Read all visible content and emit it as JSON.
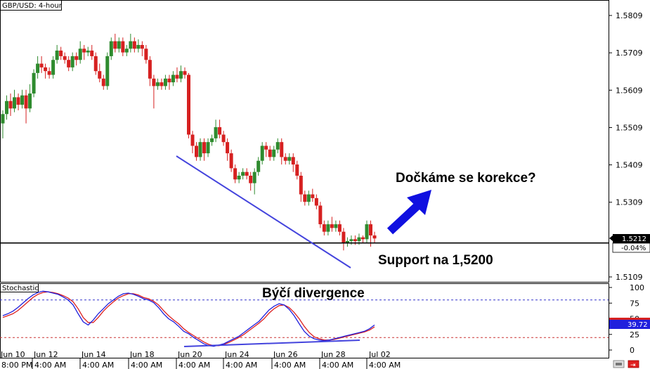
{
  "chart_data": {
    "type": "candlestick",
    "title": "GBP/USD: 4-hour",
    "colors": {
      "up": "#2e8b2e",
      "down": "#d62020",
      "support": "#000000",
      "trendline": "#4444dd",
      "arrow": "#1010e0",
      "stoch_k": "#2020dd",
      "stoch_d": "#dd2020"
    },
    "price_axis": {
      "ticks": [
        "1.5809",
        "1.5709",
        "1.5609",
        "1.5509",
        "1.5409",
        "1.5309",
        "1.5109"
      ],
      "ylim": [
        1.5062,
        1.5855
      ],
      "last_price": "1.5212",
      "last_change": "-0.04%"
    },
    "x_labels": [
      {
        "day": "Jun 10",
        "time": "8:00 PM"
      },
      {
        "day": "Jun 12",
        "time": "4:00 AM"
      },
      {
        "day": "Jun 14",
        "time": "4:00 AM"
      },
      {
        "day": "Jun 18",
        "time": "4:00 AM"
      },
      {
        "day": "Jun 20",
        "time": "4:00 AM"
      },
      {
        "day": "Jun 24",
        "time": "4:00 AM"
      },
      {
        "day": "Jun 26",
        "time": "4:00 AM"
      },
      {
        "day": "Jun 28",
        "time": "4:00 AM"
      },
      {
        "day": "Jul 02",
        "time": "4:00 AM"
      }
    ],
    "candles": [
      [
        1.552,
        1.5545,
        1.548,
        1.5555
      ],
      [
        1.5545,
        1.558,
        1.553,
        1.5595
      ],
      [
        1.558,
        1.556,
        1.554,
        1.56
      ],
      [
        1.556,
        1.559,
        1.555,
        1.561
      ],
      [
        1.559,
        1.557,
        1.5555,
        1.56
      ],
      [
        1.557,
        1.5595,
        1.556,
        1.561
      ],
      [
        1.5595,
        1.556,
        1.552,
        1.561
      ],
      [
        1.556,
        1.56,
        1.555,
        1.5625
      ],
      [
        1.56,
        1.5655,
        1.559,
        1.5665
      ],
      [
        1.5655,
        1.568,
        1.564,
        1.57
      ],
      [
        1.568,
        1.567,
        1.5655,
        1.57
      ],
      [
        1.567,
        1.566,
        1.564,
        1.568
      ],
      [
        1.566,
        1.565,
        1.564,
        1.567
      ],
      [
        1.565,
        1.569,
        1.564,
        1.57
      ],
      [
        1.569,
        1.5715,
        1.568,
        1.573
      ],
      [
        1.5715,
        1.57,
        1.569,
        1.5725
      ],
      [
        1.57,
        1.569,
        1.568,
        1.571
      ],
      [
        1.569,
        1.567,
        1.566,
        1.57
      ],
      [
        1.567,
        1.57,
        1.566,
        1.571
      ],
      [
        1.57,
        1.569,
        1.5675,
        1.571
      ],
      [
        1.569,
        1.572,
        1.568,
        1.574
      ],
      [
        1.572,
        1.571,
        1.569,
        1.573
      ],
      [
        1.571,
        1.5715,
        1.57,
        1.5725
      ],
      [
        1.5715,
        1.57,
        1.569,
        1.573
      ],
      [
        1.57,
        1.566,
        1.565,
        1.571
      ],
      [
        1.566,
        1.564,
        1.563,
        1.568
      ],
      [
        1.564,
        1.562,
        1.561,
        1.565
      ],
      [
        1.562,
        1.57,
        1.561,
        1.571
      ],
      [
        1.57,
        1.574,
        1.569,
        1.575
      ],
      [
        1.574,
        1.572,
        1.571,
        1.576
      ],
      [
        1.572,
        1.574,
        1.571,
        1.575
      ],
      [
        1.574,
        1.571,
        1.57,
        1.575
      ],
      [
        1.571,
        1.572,
        1.57,
        1.573
      ],
      [
        1.572,
        1.574,
        1.571,
        1.576
      ],
      [
        1.574,
        1.572,
        1.571,
        1.575
      ],
      [
        1.572,
        1.573,
        1.571,
        1.5745
      ],
      [
        1.573,
        1.572,
        1.57,
        1.574
      ],
      [
        1.572,
        1.569,
        1.568,
        1.573
      ],
      [
        1.569,
        1.564,
        1.562,
        1.57
      ],
      [
        1.564,
        1.562,
        1.556,
        1.565
      ],
      [
        1.562,
        1.563,
        1.561,
        1.564
      ],
      [
        1.563,
        1.562,
        1.561,
        1.564
      ],
      [
        1.562,
        1.564,
        1.561,
        1.565
      ],
      [
        1.564,
        1.563,
        1.561,
        1.565
      ],
      [
        1.563,
        1.565,
        1.562,
        1.566
      ],
      [
        1.565,
        1.564,
        1.563,
        1.567
      ],
      [
        1.564,
        1.566,
        1.563,
        1.5675
      ],
      [
        1.566,
        1.565,
        1.564,
        1.567
      ],
      [
        1.565,
        1.549,
        1.548,
        1.5655
      ],
      [
        1.549,
        1.546,
        1.544,
        1.55
      ],
      [
        1.546,
        1.543,
        1.542,
        1.547
      ],
      [
        1.543,
        1.547,
        1.542,
        1.548
      ],
      [
        1.547,
        1.544,
        1.542,
        1.548
      ],
      [
        1.544,
        1.547,
        1.543,
        1.548
      ],
      [
        1.547,
        1.548,
        1.546,
        1.549
      ],
      [
        1.548,
        1.551,
        1.547,
        1.553
      ],
      [
        1.551,
        1.549,
        1.548,
        1.553
      ],
      [
        1.549,
        1.547,
        1.546,
        1.55
      ],
      [
        1.547,
        1.544,
        1.542,
        1.548
      ],
      [
        1.544,
        1.54,
        1.539,
        1.545
      ],
      [
        1.54,
        1.537,
        1.536,
        1.541
      ],
      [
        1.537,
        1.538,
        1.536,
        1.539
      ],
      [
        1.538,
        1.539,
        1.537,
        1.54
      ],
      [
        1.539,
        1.538,
        1.537,
        1.54
      ],
      [
        1.538,
        1.536,
        1.534,
        1.539
      ],
      [
        1.536,
        1.539,
        1.533,
        1.54
      ],
      [
        1.539,
        1.542,
        1.538,
        1.543
      ],
      [
        1.542,
        1.546,
        1.541,
        1.547
      ],
      [
        1.546,
        1.545,
        1.543,
        1.547
      ],
      [
        1.545,
        1.543,
        1.542,
        1.546
      ],
      [
        1.543,
        1.545,
        1.542,
        1.546
      ],
      [
        1.545,
        1.547,
        1.544,
        1.548
      ],
      [
        1.547,
        1.543,
        1.541,
        1.548
      ],
      [
        1.543,
        1.542,
        1.541,
        1.544
      ],
      [
        1.542,
        1.543,
        1.541,
        1.544
      ],
      [
        1.543,
        1.541,
        1.539,
        1.544
      ],
      [
        1.541,
        1.538,
        1.537,
        1.542
      ],
      [
        1.538,
        1.533,
        1.531,
        1.539
      ],
      [
        1.533,
        1.531,
        1.53,
        1.534
      ],
      [
        1.531,
        1.533,
        1.53,
        1.534
      ],
      [
        1.533,
        1.532,
        1.531,
        1.5345
      ],
      [
        1.532,
        1.53,
        1.529,
        1.533
      ],
      [
        1.53,
        1.525,
        1.524,
        1.531
      ],
      [
        1.525,
        1.523,
        1.522,
        1.526
      ],
      [
        1.523,
        1.525,
        1.522,
        1.526
      ],
      [
        1.525,
        1.524,
        1.523,
        1.527
      ],
      [
        1.524,
        1.525,
        1.523,
        1.526
      ],
      [
        1.525,
        1.523,
        1.522,
        1.526
      ],
      [
        1.523,
        1.52,
        1.518,
        1.524
      ],
      [
        1.52,
        1.5205,
        1.519,
        1.5215
      ],
      [
        1.5205,
        1.521,
        1.5195,
        1.522
      ],
      [
        1.521,
        1.5205,
        1.5195,
        1.522
      ],
      [
        1.5205,
        1.5215,
        1.5195,
        1.5225
      ],
      [
        1.5215,
        1.521,
        1.52,
        1.522
      ],
      [
        1.521,
        1.525,
        1.52,
        1.526
      ],
      [
        1.525,
        1.522,
        1.519,
        1.526
      ],
      [
        1.522,
        1.5212,
        1.52,
        1.523
      ]
    ],
    "support": {
      "label": "Support na 1,5200",
      "value": 1.52
    },
    "annotations": {
      "question": "Dočkáme se korekce?",
      "divergence": "Býčí divergence"
    },
    "stochastic": {
      "label": "Stochastic",
      "ticks": [
        "100",
        "75",
        "50",
        "25",
        "0"
      ],
      "levels": [
        80,
        20
      ],
      "k_value": "39.72",
      "k": [
        55,
        58,
        62,
        68,
        75,
        82,
        88,
        92,
        94,
        93,
        91,
        89,
        85,
        80,
        72,
        58,
        45,
        40,
        48,
        58,
        66,
        74,
        80,
        86,
        90,
        91,
        89,
        86,
        82,
        80,
        76,
        68,
        58,
        50,
        45,
        38,
        30,
        26,
        20,
        15,
        10,
        7,
        6,
        8,
        10,
        14,
        18,
        22,
        28,
        34,
        40,
        46,
        55,
        64,
        70,
        74,
        72,
        65,
        55,
        42,
        30,
        22,
        18,
        16,
        15,
        16,
        18,
        20,
        22,
        24,
        26,
        28,
        30,
        34,
        40
      ],
      "d": [
        52,
        55,
        58,
        63,
        70,
        77,
        84,
        89,
        92,
        93,
        92,
        90,
        87,
        83,
        77,
        66,
        52,
        44,
        44,
        52,
        62,
        70,
        77,
        83,
        87,
        90,
        90,
        88,
        84,
        82,
        78,
        72,
        63,
        55,
        48,
        42,
        34,
        28,
        23,
        18,
        13,
        9,
        7,
        7,
        9,
        12,
        16,
        20,
        25,
        31,
        37,
        43,
        50,
        59,
        66,
        71,
        72,
        68,
        60,
        50,
        38,
        28,
        21,
        18,
        16,
        16,
        17,
        19,
        21,
        23,
        25,
        27,
        29,
        32,
        37
      ]
    }
  }
}
